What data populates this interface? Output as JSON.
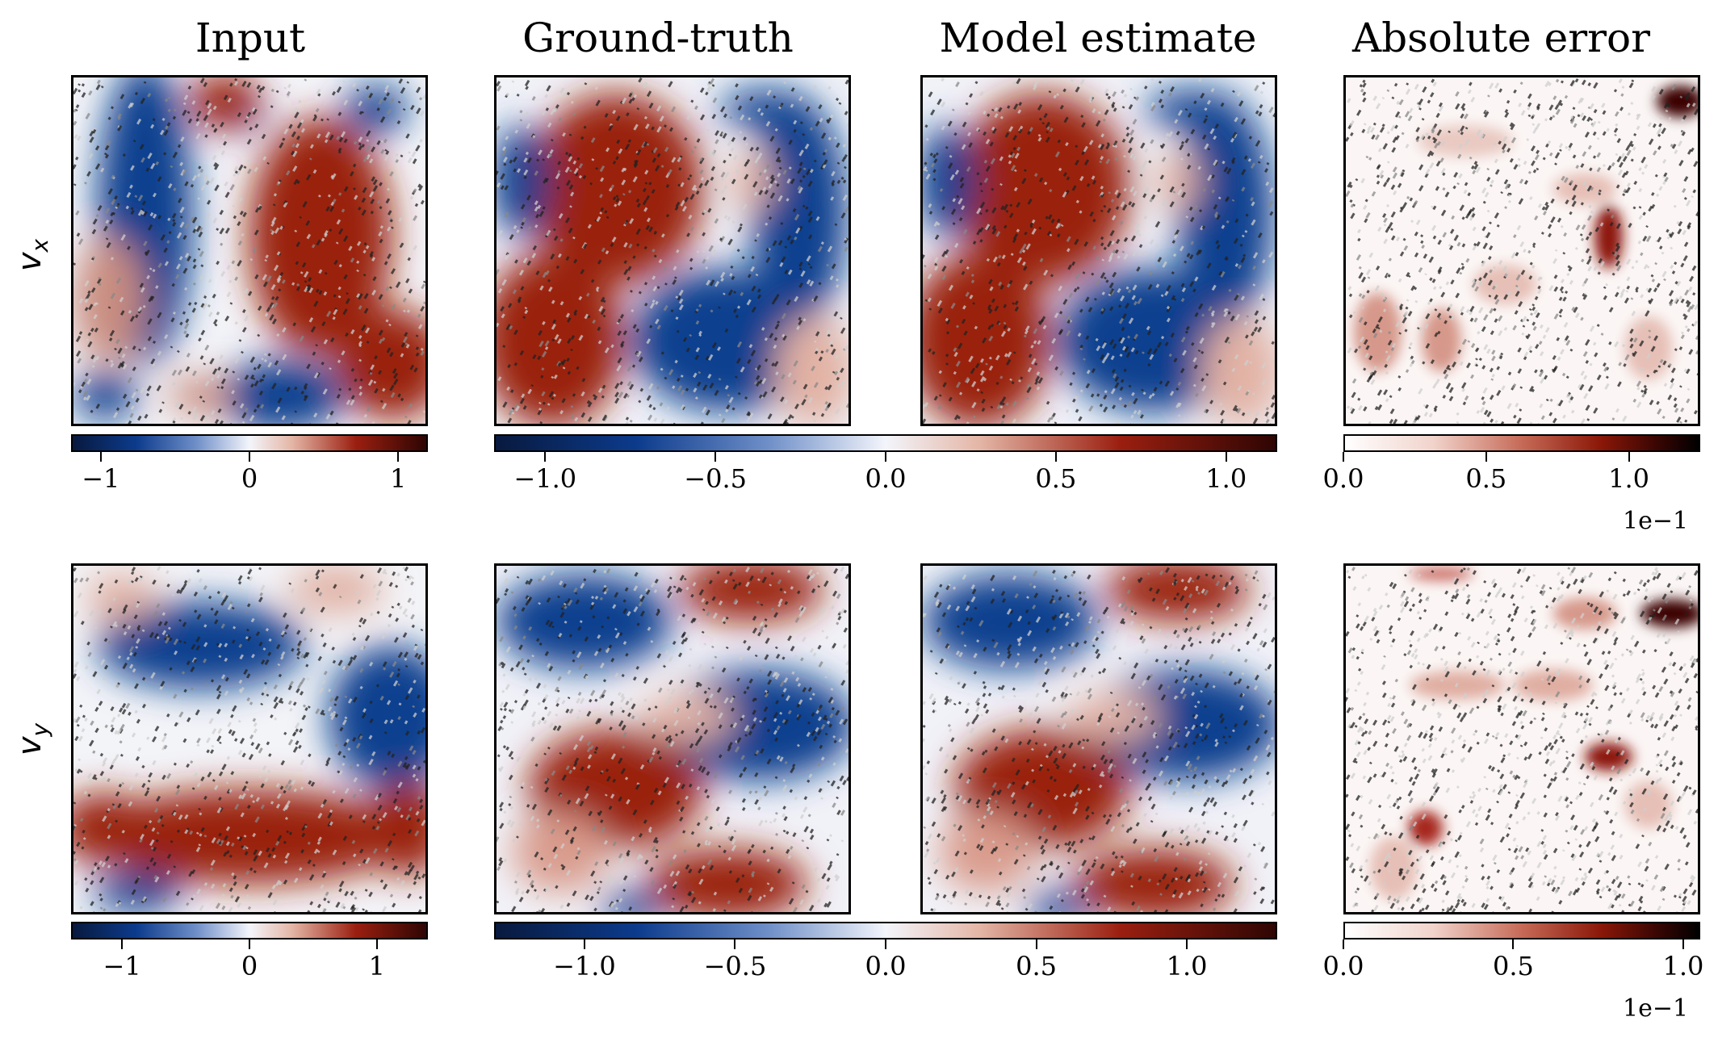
{
  "chart_data": {
    "type": "heatmap",
    "columns": [
      "Input",
      "Ground-truth",
      "Model estimate",
      "Absolute error"
    ],
    "rows": [
      {
        "label": "v_x",
        "label_main": "v",
        "label_sub": "x",
        "colorbars": [
          {
            "for": "Input",
            "colormap": "blue-white-red",
            "range": [
              -1.2,
              1.2
            ],
            "ticks": [
              {
                "v": -1,
                "label": "−1"
              },
              {
                "v": 0,
                "label": "0"
              },
              {
                "v": 1,
                "label": "1"
              }
            ]
          },
          {
            "for": "Ground-truth + Model estimate",
            "colormap": "blue-white-red",
            "range": [
              -1.15,
              1.15
            ],
            "ticks": [
              {
                "v": -1.0,
                "label": "−1.0"
              },
              {
                "v": -0.5,
                "label": "−0.5"
              },
              {
                "v": 0.0,
                "label": "0.0"
              },
              {
                "v": 0.5,
                "label": "0.5"
              },
              {
                "v": 1.0,
                "label": "1.0"
              }
            ]
          },
          {
            "for": "Absolute error",
            "colormap": "white-red-black",
            "range": [
              0.0,
              1.25
            ],
            "ticks": [
              {
                "v": 0.0,
                "label": "0.0"
              },
              {
                "v": 0.5,
                "label": "0.5"
              },
              {
                "v": 1.0,
                "label": "1.0"
              }
            ],
            "offset": "1e−1"
          }
        ]
      },
      {
        "label": "v_y",
        "label_main": "v",
        "label_sub": "y",
        "colorbars": [
          {
            "for": "Input",
            "colormap": "blue-white-red",
            "range": [
              -1.4,
              1.4
            ],
            "ticks": [
              {
                "v": -1,
                "label": "−1"
              },
              {
                "v": 0,
                "label": "0"
              },
              {
                "v": 1,
                "label": "1"
              }
            ]
          },
          {
            "for": "Ground-truth + Model estimate",
            "colormap": "blue-white-red",
            "range": [
              -1.3,
              1.3
            ],
            "ticks": [
              {
                "v": -1.0,
                "label": "−1.0"
              },
              {
                "v": -0.5,
                "label": "−0.5"
              },
              {
                "v": 0.0,
                "label": "0.0"
              },
              {
                "v": 0.5,
                "label": "0.5"
              },
              {
                "v": 1.0,
                "label": "1.0"
              }
            ]
          },
          {
            "for": "Absolute error",
            "colormap": "white-red-black",
            "range": [
              0.0,
              1.05
            ],
            "ticks": [
              {
                "v": 0.0,
                "label": "0.0"
              },
              {
                "v": 0.5,
                "label": "0.5"
              },
              {
                "v": 1.0,
                "label": "1.0"
              }
            ],
            "offset": "1e−1"
          }
        ]
      }
    ]
  }
}
